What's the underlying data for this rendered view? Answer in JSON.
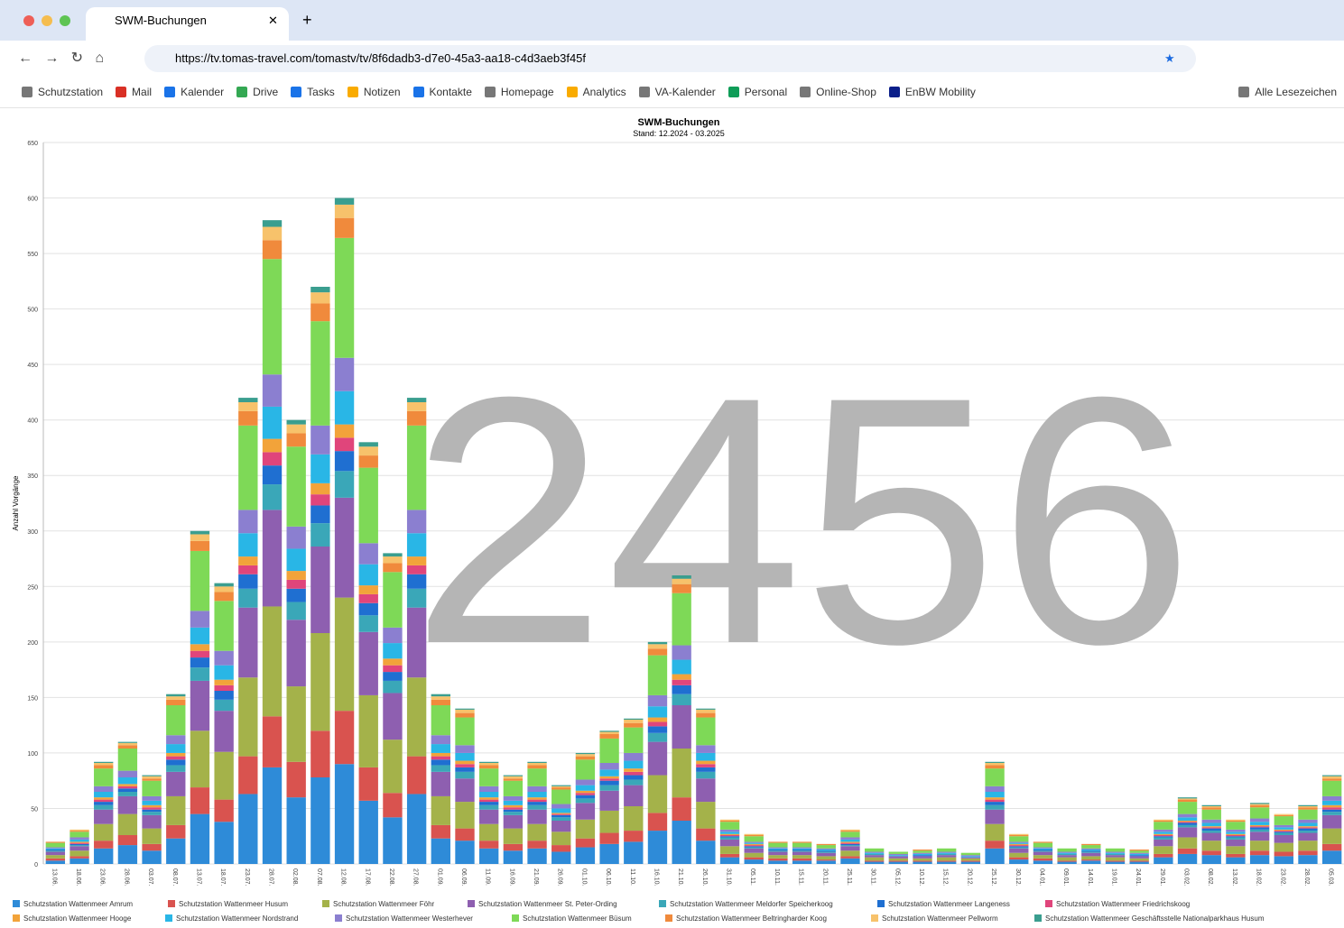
{
  "browser": {
    "tab_title": "SWM-Buchungen",
    "url": "https://tv.tomas-travel.com/tomastv/tv/8f6dadb3-d7e0-45a3-aa18-c4d3aeb3f45f",
    "bookmarks": [
      "Schutzstation",
      "Mail",
      "Kalender",
      "Drive",
      "Tasks",
      "Notizen",
      "Kontakte",
      "Homepage",
      "Analytics",
      "VA-Kalender",
      "Personal",
      "Online-Shop",
      "EnBW Mobility"
    ],
    "all_bookmarks": "Alle Lesezeichen"
  },
  "overlay_number": "2456",
  "chart_data": {
    "type": "bar",
    "stacked": true,
    "title": "SWM-Buchungen",
    "subtitle": "Stand: 12.2024 - 03.2025",
    "y_label": "Anzahl Vorgänge",
    "ylim": [
      0,
      650
    ],
    "yticks": [
      0,
      50,
      100,
      150,
      200,
      250,
      300,
      350,
      400,
      450,
      500,
      550,
      600,
      650
    ],
    "grid": true,
    "categories": [
      "13.06.",
      "18.06.",
      "23.06.",
      "28.06.",
      "03.07.",
      "08.07.",
      "13.07.",
      "18.07.",
      "23.07.",
      "28.07.",
      "02.08.",
      "07.08.",
      "12.08.",
      "17.08.",
      "22.08.",
      "27.08.",
      "01.09.",
      "06.09.",
      "11.09.",
      "16.09.",
      "21.09.",
      "26.09.",
      "01.10.",
      "06.10.",
      "11.10.",
      "16.10.",
      "21.10.",
      "26.10.",
      "31.10.",
      "05.11.",
      "10.11.",
      "15.11.",
      "20.11.",
      "25.11.",
      "30.11.",
      "05.12.",
      "10.12.",
      "15.12.",
      "20.12.",
      "25.12.",
      "30.12.",
      "04.01.",
      "09.01.",
      "14.01.",
      "19.01.",
      "24.01.",
      "29.01.",
      "03.02.",
      "08.02.",
      "13.02.",
      "18.02.",
      "23.02.",
      "28.02.",
      "05.03."
    ],
    "series": [
      {
        "name": "Schutzstation Wattenmeer Amrum",
        "color": "#2e8bd8",
        "values": [
          3,
          5,
          14,
          17,
          12,
          23,
          45,
          38,
          63,
          87,
          60,
          78,
          90,
          57,
          42,
          63,
          23,
          21,
          14,
          12,
          14,
          11,
          15,
          18,
          20,
          30,
          39,
          21,
          6,
          4,
          3,
          3,
          3,
          5,
          2,
          2,
          2,
          2,
          2,
          14,
          4,
          3,
          2,
          3,
          2,
          2,
          6,
          9,
          8,
          6,
          8,
          7,
          8,
          12
        ]
      },
      {
        "name": "Schutzstation Wattenmeer Husum",
        "color": "#d9534f",
        "values": [
          2,
          2,
          7,
          9,
          6,
          12,
          24,
          20,
          34,
          46,
          32,
          42,
          48,
          30,
          22,
          34,
          12,
          11,
          7,
          6,
          7,
          6,
          8,
          10,
          10,
          16,
          21,
          11,
          3,
          2,
          2,
          2,
          1,
          2,
          1,
          1,
          1,
          1,
          1,
          7,
          2,
          2,
          1,
          1,
          1,
          1,
          3,
          5,
          4,
          3,
          4,
          4,
          4,
          6
        ]
      },
      {
        "name": "Schutzstation Wattenmeer Föhr",
        "color": "#a4b24a",
        "values": [
          3,
          5,
          15,
          19,
          14,
          26,
          51,
          43,
          71,
          99,
          68,
          88,
          102,
          65,
          48,
          71,
          26,
          24,
          15,
          14,
          15,
          12,
          17,
          20,
          22,
          34,
          44,
          24,
          7,
          4,
          3,
          3,
          3,
          5,
          3,
          2,
          2,
          3,
          2,
          15,
          4,
          3,
          3,
          3,
          3,
          2,
          7,
          10,
          9,
          7,
          9,
          8,
          9,
          14
        ]
      },
      {
        "name": "Schutzstation Wattenmeer St. Peter-Ording",
        "color": "#8e5fb0",
        "values": [
          3,
          4,
          13,
          16,
          12,
          22,
          45,
          37,
          63,
          87,
          60,
          78,
          90,
          57,
          42,
          63,
          22,
          21,
          13,
          12,
          13,
          10,
          15,
          18,
          19,
          30,
          39,
          21,
          6,
          4,
          3,
          3,
          3,
          4,
          2,
          2,
          2,
          2,
          1,
          13,
          4,
          3,
          2,
          3,
          2,
          2,
          6,
          9,
          7,
          6,
          8,
          7,
          7,
          12
        ]
      },
      {
        "name": "Schutzstation Wattenmeer Meldorfer Speicherkoog",
        "color": "#3aa7b8",
        "values": [
          1,
          1,
          4,
          4,
          3,
          6,
          12,
          10,
          17,
          23,
          16,
          21,
          24,
          15,
          11,
          17,
          6,
          6,
          4,
          3,
          4,
          3,
          4,
          5,
          5,
          8,
          10,
          6,
          2,
          1,
          1,
          1,
          1,
          1,
          1,
          0,
          0,
          1,
          0,
          4,
          1,
          1,
          1,
          1,
          1,
          0,
          2,
          2,
          2,
          2,
          2,
          2,
          2,
          3
        ]
      },
      {
        "name": "Schutzstation Wattenmeer Langeness",
        "color": "#1f6fd1",
        "values": [
          1,
          1,
          3,
          3,
          2,
          5,
          9,
          8,
          13,
          17,
          12,
          16,
          18,
          11,
          8,
          13,
          5,
          4,
          3,
          2,
          3,
          2,
          3,
          4,
          4,
          6,
          8,
          4,
          1,
          1,
          1,
          1,
          1,
          1,
          0,
          0,
          1,
          0,
          0,
          3,
          1,
          1,
          0,
          1,
          0,
          1,
          1,
          2,
          2,
          1,
          2,
          1,
          2,
          2
        ]
      },
      {
        "name": "Schutzstation Wattenmeer Friedrichskoog",
        "color": "#e0457b",
        "values": [
          0,
          1,
          2,
          2,
          2,
          3,
          6,
          5,
          8,
          12,
          8,
          10,
          12,
          8,
          6,
          8,
          3,
          3,
          2,
          2,
          2,
          1,
          2,
          2,
          3,
          4,
          5,
          3,
          1,
          1,
          0,
          0,
          0,
          1,
          0,
          0,
          0,
          0,
          0,
          2,
          1,
          0,
          0,
          0,
          0,
          0,
          1,
          1,
          1,
          1,
          1,
          1,
          1,
          2
        ]
      },
      {
        "name": "Schutzstation Wattenmeer Hooge",
        "color": "#f2a33a",
        "values": [
          0,
          1,
          2,
          2,
          2,
          3,
          6,
          5,
          8,
          12,
          8,
          10,
          12,
          8,
          6,
          8,
          3,
          3,
          2,
          2,
          2,
          1,
          2,
          2,
          3,
          4,
          5,
          3,
          1,
          1,
          0,
          0,
          0,
          1,
          0,
          0,
          0,
          0,
          0,
          2,
          1,
          0,
          0,
          0,
          0,
          0,
          1,
          1,
          1,
          1,
          1,
          1,
          1,
          2
        ]
      },
      {
        "name": "Schutzstation Wattenmeer Nordstrand",
        "color": "#29b6e6",
        "values": [
          1,
          2,
          5,
          6,
          4,
          8,
          15,
          13,
          21,
          29,
          20,
          26,
          30,
          19,
          14,
          21,
          8,
          7,
          5,
          4,
          5,
          4,
          5,
          6,
          7,
          10,
          13,
          7,
          2,
          1,
          1,
          1,
          1,
          2,
          1,
          1,
          1,
          1,
          1,
          5,
          1,
          1,
          1,
          1,
          1,
          1,
          2,
          3,
          3,
          2,
          3,
          2,
          3,
          4
        ]
      },
      {
        "name": "Schutzstation Wattenmeer Westerhever",
        "color": "#8b7fd0",
        "values": [
          1,
          2,
          5,
          6,
          4,
          8,
          15,
          13,
          21,
          29,
          20,
          26,
          30,
          19,
          14,
          21,
          8,
          7,
          5,
          4,
          5,
          4,
          5,
          6,
          7,
          10,
          13,
          7,
          2,
          1,
          1,
          1,
          1,
          2,
          1,
          1,
          1,
          1,
          1,
          5,
          1,
          1,
          1,
          1,
          1,
          1,
          2,
          3,
          3,
          2,
          3,
          2,
          3,
          4
        ]
      },
      {
        "name": "Schutzstation Wattenmeer Büsum",
        "color": "#7ed957",
        "values": [
          4,
          5,
          16,
          20,
          14,
          27,
          54,
          45,
          76,
          104,
          72,
          94,
          108,
          68,
          50,
          76,
          27,
          25,
          16,
          14,
          16,
          13,
          18,
          22,
          23,
          36,
          47,
          25,
          7,
          5,
          4,
          4,
          3,
          5,
          3,
          2,
          2,
          3,
          2,
          16,
          5,
          4,
          3,
          3,
          3,
          2,
          7,
          11,
          9,
          7,
          10,
          8,
          9,
          14
        ]
      },
      {
        "name": "Schutzstation Wattenmeer Beltringharder Koog",
        "color": "#f08a3c",
        "values": [
          1,
          1,
          3,
          3,
          2,
          5,
          9,
          8,
          13,
          17,
          12,
          16,
          18,
          11,
          8,
          13,
          5,
          4,
          3,
          2,
          3,
          2,
          3,
          4,
          4,
          6,
          8,
          4,
          1,
          1,
          1,
          1,
          1,
          1,
          0,
          0,
          1,
          0,
          0,
          3,
          1,
          1,
          0,
          1,
          0,
          1,
          1,
          2,
          2,
          1,
          2,
          1,
          2,
          2
        ]
      },
      {
        "name": "Schutzstation Wattenmeer Pellworm",
        "color": "#f7c26b",
        "values": [
          0,
          1,
          2,
          2,
          2,
          3,
          6,
          5,
          8,
          12,
          8,
          10,
          12,
          8,
          6,
          8,
          3,
          3,
          2,
          2,
          2,
          1,
          2,
          2,
          3,
          4,
          5,
          3,
          1,
          1,
          0,
          0,
          0,
          1,
          0,
          0,
          0,
          0,
          0,
          2,
          1,
          0,
          0,
          0,
          0,
          0,
          1,
          1,
          1,
          1,
          1,
          1,
          1,
          2
        ]
      },
      {
        "name": "Schutzstation Wattenmeer Geschäftsstelle Nationalparkhaus Husum",
        "color": "#3a9e8f",
        "values": [
          0,
          0,
          1,
          1,
          1,
          2,
          3,
          3,
          4,
          6,
          4,
          5,
          6,
          4,
          3,
          4,
          2,
          1,
          1,
          1,
          1,
          1,
          1,
          1,
          1,
          2,
          3,
          1,
          0,
          0,
          0,
          0,
          0,
          0,
          0,
          0,
          0,
          0,
          0,
          1,
          0,
          0,
          0,
          0,
          0,
          0,
          0,
          1,
          1,
          0,
          1,
          0,
          1,
          1
        ]
      }
    ]
  }
}
